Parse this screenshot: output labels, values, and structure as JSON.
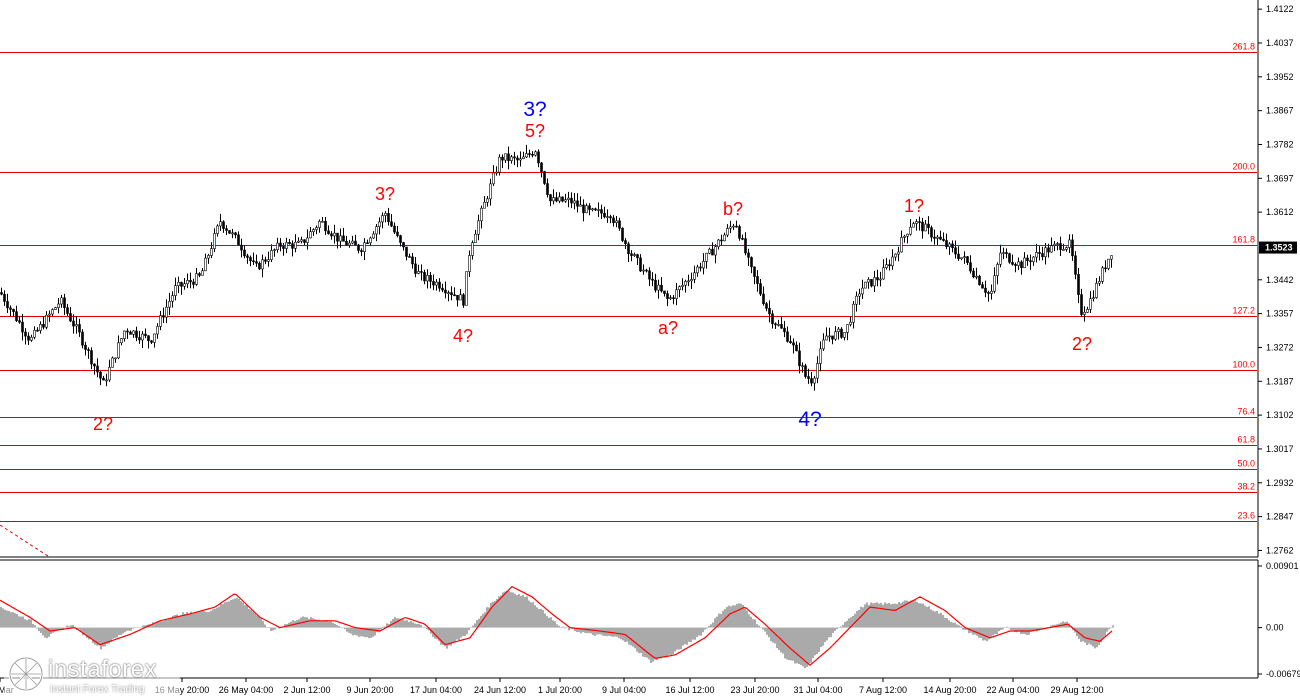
{
  "chart_data": [
    {
      "type": "candlestick",
      "pair_price_last": "1.3523",
      "y_axis_ticks": [
        "1.4122",
        "1.4037",
        "1.3952",
        "1.3867",
        "1.3782",
        "1.3697",
        "1.3612",
        "1.3523",
        "1.3442",
        "1.3357",
        "1.3272",
        "1.3187",
        "1.3102",
        "1.3017",
        "1.2932",
        "1.2847",
        "1.2762"
      ],
      "ylim": [
        1.2748,
        1.414
      ],
      "x_axis_ticks": [
        "Mar",
        "16 May 20:00",
        "26 May 04:00",
        "2 Jun 12:00",
        "9 Jun 20:00",
        "17 Jun 04:00",
        "24 Jun 12:00",
        "1 Jul 20:00",
        "9 Jul 04:00",
        "16 Jul 12:00",
        "23 Jul 20:00",
        "31 Jul 04:00",
        "7 Aug 12:00",
        "14 Aug 20:00",
        "22 Aug 04:00",
        "29 Aug 12:00"
      ],
      "fibonacci_levels": [
        {
          "label": "261.8",
          "price": 1.4015
        },
        {
          "label": "200.0",
          "price": 1.3712
        },
        {
          "label": "161.8",
          "price": 1.353
        },
        {
          "label": "127.2",
          "price": 1.3352
        },
        {
          "label": "100.0",
          "price": 1.3216
        },
        {
          "label": "76.4",
          "price": 1.3098
        },
        {
          "label": "61.8",
          "price": 1.3026
        },
        {
          "label": "50.0",
          "price": 1.2967
        },
        {
          "label": "38.2",
          "price": 1.2908
        },
        {
          "label": "23.6",
          "price": 1.2836
        }
      ],
      "price_path": [
        [
          0,
          1.341
        ],
        [
          30,
          1.329
        ],
        [
          60,
          1.339
        ],
        [
          80,
          1.33
        ],
        [
          103,
          1.318
        ],
        [
          125,
          1.332
        ],
        [
          150,
          1.329
        ],
        [
          175,
          1.342
        ],
        [
          200,
          1.345
        ],
        [
          220,
          1.359
        ],
        [
          240,
          1.353
        ],
        [
          255,
          1.347
        ],
        [
          280,
          1.353
        ],
        [
          300,
          1.353
        ],
        [
          320,
          1.359
        ],
        [
          340,
          1.354
        ],
        [
          360,
          1.352
        ],
        [
          385,
          1.361
        ],
        [
          400,
          1.353
        ],
        [
          420,
          1.345
        ],
        [
          440,
          1.343
        ],
        [
          463,
          1.339
        ],
        [
          470,
          1.353
        ],
        [
          485,
          1.364
        ],
        [
          500,
          1.375
        ],
        [
          520,
          1.374
        ],
        [
          535,
          1.377
        ],
        [
          550,
          1.364
        ],
        [
          570,
          1.364
        ],
        [
          590,
          1.361
        ],
        [
          610,
          1.361
        ],
        [
          630,
          1.351
        ],
        [
          650,
          1.344
        ],
        [
          668,
          1.339
        ],
        [
          690,
          1.345
        ],
        [
          710,
          1.351
        ],
        [
          735,
          1.359
        ],
        [
          750,
          1.347
        ],
        [
          770,
          1.335
        ],
        [
          790,
          1.329
        ],
        [
          805,
          1.32
        ],
        [
          812,
          1.319
        ],
        [
          825,
          1.33
        ],
        [
          845,
          1.331
        ],
        [
          860,
          1.342
        ],
        [
          880,
          1.345
        ],
        [
          895,
          1.351
        ],
        [
          912,
          1.359
        ],
        [
          925,
          1.357
        ],
        [
          945,
          1.353
        ],
        [
          965,
          1.349
        ],
        [
          990,
          1.34
        ],
        [
          1000,
          1.351
        ],
        [
          1020,
          1.348
        ],
        [
          1040,
          1.351
        ],
        [
          1060,
          1.353
        ],
        [
          1070,
          1.353
        ],
        [
          1080,
          1.336
        ],
        [
          1088,
          1.338
        ],
        [
          1100,
          1.345
        ],
        [
          1112,
          1.352
        ]
      ],
      "wave_labels": [
        {
          "text": "2?",
          "color": "#ff0000"
        },
        {
          "text": "3?",
          "color": "#ff0000"
        },
        {
          "text": "4?",
          "color": "#ff0000"
        },
        {
          "text": "3?",
          "color": "#0000ff"
        },
        {
          "text": "5?",
          "color": "#ff0000"
        },
        {
          "text": "a?",
          "color": "#ff0000"
        },
        {
          "text": "b?",
          "color": "#ff0000"
        },
        {
          "text": "4?",
          "color": "#0000ff"
        },
        {
          "text": "1?",
          "color": "#ff0000"
        },
        {
          "text": "2?",
          "color": "#ff0000"
        }
      ],
      "colors": {
        "fib_line": "#e00000",
        "fib_label": "#ff0000",
        "candle": "#000000",
        "price_box": "#000000"
      }
    },
    {
      "type": "oscillator",
      "y_axis_ticks": [
        "0.00901",
        "0.00",
        "-0.00679"
      ],
      "ylim": [
        -0.00679,
        0.00901
      ],
      "histogram_profile": [
        [
          0,
          0.003
        ],
        [
          30,
          0.001
        ],
        [
          45,
          -0.0015
        ],
        [
          70,
          0.0005
        ],
        [
          100,
          -0.003
        ],
        [
          125,
          -0.0005
        ],
        [
          150,
          0.0005
        ],
        [
          180,
          0.002
        ],
        [
          210,
          0.0025
        ],
        [
          235,
          0.0045
        ],
        [
          255,
          0.002
        ],
        [
          270,
          -0.0005
        ],
        [
          300,
          0.0015
        ],
        [
          330,
          0.001
        ],
        [
          350,
          -0.001
        ],
        [
          370,
          -0.0015
        ],
        [
          395,
          0.0015
        ],
        [
          420,
          0.0005
        ],
        [
          445,
          -0.003
        ],
        [
          465,
          -0.001
        ],
        [
          490,
          0.0035
        ],
        [
          505,
          0.0055
        ],
        [
          525,
          0.0045
        ],
        [
          545,
          0.002
        ],
        [
          560,
          0.0
        ],
        [
          590,
          -0.001
        ],
        [
          620,
          -0.0015
        ],
        [
          650,
          -0.005
        ],
        [
          670,
          -0.004
        ],
        [
          700,
          -0.001
        ],
        [
          725,
          0.003
        ],
        [
          740,
          0.0035
        ],
        [
          760,
          0.0
        ],
        [
          785,
          -0.0045
        ],
        [
          805,
          -0.006
        ],
        [
          825,
          -0.002
        ],
        [
          845,
          0.001
        ],
        [
          865,
          0.0035
        ],
        [
          890,
          0.0035
        ],
        [
          915,
          0.004
        ],
        [
          940,
          0.002
        ],
        [
          960,
          0.0
        ],
        [
          985,
          -0.002
        ],
        [
          1005,
          0.0
        ],
        [
          1025,
          -0.001
        ],
        [
          1045,
          0.0
        ],
        [
          1065,
          0.001
        ],
        [
          1080,
          -0.002
        ],
        [
          1095,
          -0.003
        ],
        [
          1112,
          0.0005
        ]
      ],
      "signal_profile": [
        [
          0,
          0.004
        ],
        [
          30,
          0.0015
        ],
        [
          50,
          -0.0005
        ],
        [
          75,
          0.0
        ],
        [
          100,
          -0.0025
        ],
        [
          130,
          -0.001
        ],
        [
          160,
          0.001
        ],
        [
          190,
          0.002
        ],
        [
          215,
          0.003
        ],
        [
          235,
          0.005
        ],
        [
          260,
          0.0015
        ],
        [
          280,
          0.0
        ],
        [
          310,
          0.001
        ],
        [
          335,
          0.001
        ],
        [
          355,
          0.0
        ],
        [
          380,
          -0.0005
        ],
        [
          405,
          0.0015
        ],
        [
          425,
          0.0005
        ],
        [
          445,
          -0.0025
        ],
        [
          470,
          -0.0015
        ],
        [
          492,
          0.003
        ],
        [
          512,
          0.006
        ],
        [
          532,
          0.0045
        ],
        [
          552,
          0.002
        ],
        [
          570,
          0.0
        ],
        [
          600,
          -0.0005
        ],
        [
          625,
          -0.001
        ],
        [
          655,
          -0.0045
        ],
        [
          675,
          -0.004
        ],
        [
          705,
          -0.0015
        ],
        [
          730,
          0.002
        ],
        [
          745,
          0.003
        ],
        [
          765,
          0.0005
        ],
        [
          790,
          -0.003
        ],
        [
          810,
          -0.0055
        ],
        [
          830,
          -0.003
        ],
        [
          850,
          0.0
        ],
        [
          870,
          0.003
        ],
        [
          895,
          0.0025
        ],
        [
          920,
          0.0045
        ],
        [
          945,
          0.0025
        ],
        [
          965,
          0.0
        ],
        [
          990,
          -0.0015
        ],
        [
          1010,
          -0.0005
        ],
        [
          1030,
          -0.0005
        ],
        [
          1050,
          0.0
        ],
        [
          1068,
          0.0005
        ],
        [
          1085,
          -0.0015
        ],
        [
          1100,
          -0.002
        ],
        [
          1112,
          -0.0005
        ]
      ],
      "colors": {
        "histogram": "#aaaaaa",
        "signal": "#ff0000"
      }
    }
  ],
  "brand": {
    "name": "instaforex",
    "tagline": "Instant Forex Trading"
  }
}
